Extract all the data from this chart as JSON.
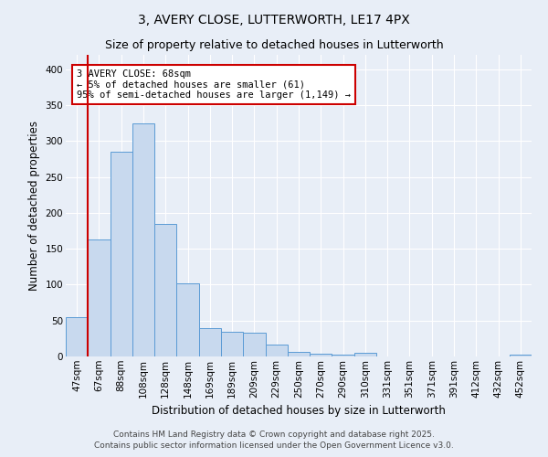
{
  "title1": "3, AVERY CLOSE, LUTTERWORTH, LE17 4PX",
  "title2": "Size of property relative to detached houses in Lutterworth",
  "xlabel": "Distribution of detached houses by size in Lutterworth",
  "ylabel": "Number of detached properties",
  "categories": [
    "47sqm",
    "67sqm",
    "88sqm",
    "108sqm",
    "128sqm",
    "148sqm",
    "169sqm",
    "189sqm",
    "209sqm",
    "229sqm",
    "250sqm",
    "270sqm",
    "290sqm",
    "310sqm",
    "331sqm",
    "351sqm",
    "371sqm",
    "391sqm",
    "412sqm",
    "432sqm",
    "452sqm"
  ],
  "values": [
    55,
    163,
    285,
    325,
    185,
    102,
    39,
    34,
    33,
    17,
    7,
    4,
    2,
    5,
    0,
    0,
    0,
    0,
    0,
    0,
    2
  ],
  "bar_color": "#c8d9ee",
  "bar_edge_color": "#5b9bd5",
  "vline_color": "#cc0000",
  "vline_x": 0.5,
  "annotation_text": "3 AVERY CLOSE: 68sqm\n← 5% of detached houses are smaller (61)\n95% of semi-detached houses are larger (1,149) →",
  "annotation_box_facecolor": "#ffffff",
  "annotation_box_edgecolor": "#cc0000",
  "footer1": "Contains HM Land Registry data © Crown copyright and database right 2025.",
  "footer2": "Contains public sector information licensed under the Open Government Licence v3.0.",
  "ylim": [
    0,
    420
  ],
  "yticks": [
    0,
    50,
    100,
    150,
    200,
    250,
    300,
    350,
    400
  ],
  "bg_color": "#e8eef7",
  "title1_fontsize": 10,
  "title2_fontsize": 9,
  "xlabel_fontsize": 8.5,
  "ylabel_fontsize": 8.5,
  "tick_fontsize": 7.5,
  "annot_fontsize": 7.5,
  "footer_fontsize": 6.5
}
